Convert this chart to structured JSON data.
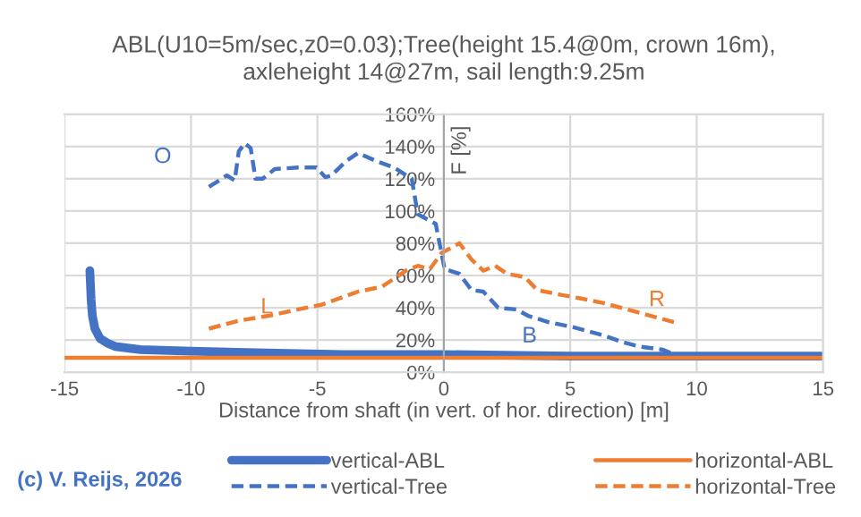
{
  "chart_data": {
    "type": "line",
    "title": "ABL(U10=5m/sec,z0=0.03);Tree(height 15.4@0m, crown 16m),\naxleheight 14@27m, sail length:9.25m",
    "xlabel": "Distance from shaft (in vert. of hor. direction) [m]",
    "ylabel": "F [%]",
    "xlim": [
      -15,
      15
    ],
    "xticks": [
      -15,
      -10,
      -5,
      0,
      5,
      10,
      15
    ],
    "ylim": [
      0,
      160
    ],
    "yticks": [
      {
        "value": 0,
        "label": "0%"
      },
      {
        "value": 20,
        "label": "20%"
      },
      {
        "value": 40,
        "label": "40%"
      },
      {
        "value": 60,
        "label": "60%"
      },
      {
        "value": 80,
        "label": "80%"
      },
      {
        "value": 100,
        "label": "100%"
      },
      {
        "value": 120,
        "label": "120%"
      },
      {
        "value": 140,
        "label": "140%"
      },
      {
        "value": 160,
        "label": "160%"
      }
    ],
    "grid": true,
    "legend": "bottom",
    "marker": "none",
    "series": [
      {
        "name": "vertical-ABL",
        "color": "#4472c4",
        "line_style": "solid",
        "x": [
          -14,
          -13.95,
          -13.9,
          -13.8,
          -13.6,
          -13.3,
          -13,
          -12,
          -10,
          -7,
          -4,
          0,
          5,
          10,
          15
        ],
        "values": [
          63,
          45,
          35,
          27,
          21,
          18,
          16,
          14,
          13,
          12,
          11,
          11,
          10,
          10,
          10
        ]
      },
      {
        "name": "horizontal-ABL",
        "color": "#ed7d31",
        "line_style": "solid",
        "x": [
          -15,
          15
        ],
        "values": [
          9,
          9
        ]
      },
      {
        "name": "vertical-Tree",
        "color": "#4472c4",
        "line_style": "dashed",
        "x": [
          -9.29,
          -8.58,
          -8.27,
          -8.11,
          -7.87,
          -7.64,
          -7.45,
          -7.16,
          -6.69,
          -5.75,
          -5.04,
          -4.69,
          -4.45,
          -3.86,
          -3.39,
          -2.68,
          -1.97,
          -1.27,
          -1.03,
          -0.32,
          0.03,
          0.62,
          1.09,
          1.56,
          2.15,
          2.86,
          3.33,
          4.16,
          5.1,
          6.29,
          7.0,
          7.71,
          8.65,
          9.12
        ],
        "values": [
          115,
          122,
          119,
          137,
          142,
          139,
          120,
          120,
          126,
          127,
          127,
          121,
          122,
          131,
          136,
          131,
          127,
          120,
          98,
          92,
          64,
          61,
          51,
          50,
          40,
          39,
          35,
          31,
          28,
          23,
          19,
          16,
          14,
          11
        ]
      },
      {
        "name": "horizontal-Tree",
        "color": "#ed7d31",
        "line_style": "dashed",
        "x": [
          -9.29,
          -8.11,
          -6.93,
          -5.75,
          -4.81,
          -3.39,
          -2.45,
          -1.5,
          -1.03,
          -0.55,
          -0.09,
          0.62,
          1.09,
          1.56,
          2.03,
          2.5,
          3.21,
          3.69,
          4.63,
          5.34,
          6.29,
          7.23,
          7.94,
          8.41,
          9.12
        ],
        "values": [
          27,
          32,
          35,
          39,
          42,
          50,
          53,
          63,
          66,
          64,
          74,
          80,
          70,
          63,
          66,
          61,
          59,
          51,
          48,
          46,
          43,
          39,
          36,
          34,
          31
        ]
      }
    ],
    "annotations": [
      "O",
      "L",
      "B",
      "R",
      "(c) V. Reijs, 2026"
    ]
  }
}
